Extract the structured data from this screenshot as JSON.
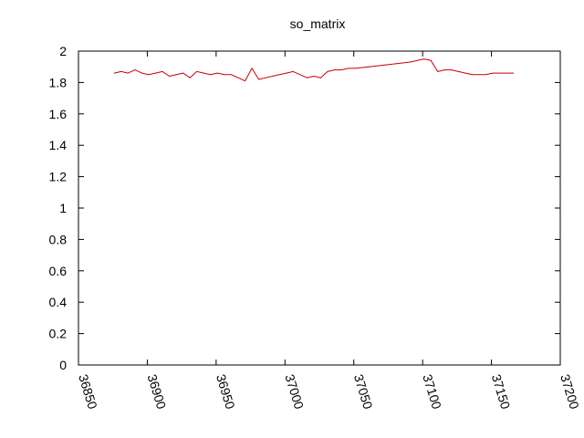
{
  "chart_data": {
    "type": "line",
    "title": "so_matrix",
    "xlabel": "",
    "ylabel": "",
    "xlim": [
      36850,
      37200
    ],
    "ylim": [
      0,
      2
    ],
    "x_ticks": [
      36850,
      36900,
      36950,
      37000,
      37050,
      37100,
      37150,
      37200
    ],
    "y_ticks": [
      0,
      0.2,
      0.4,
      0.6,
      0.8,
      1,
      1.2,
      1.4,
      1.6,
      1.8,
      2
    ],
    "y_tick_labels": [
      "0",
      "0.2",
      "0.4",
      "0.6",
      "0.8",
      "1",
      "1.2",
      "1.4",
      "1.6",
      "1.8",
      "2"
    ],
    "grid": false,
    "legend": "none",
    "series": [
      {
        "color": "#cc0000",
        "x": [
          36876,
          36881,
          36886,
          36891,
          36896,
          36901,
          36906,
          36911,
          36916,
          36921,
          36926,
          36931,
          36936,
          36941,
          36946,
          36951,
          36956,
          36961,
          36966,
          36971,
          36976,
          36981,
          36986,
          36991,
          36996,
          37001,
          37006,
          37011,
          37016,
          37021,
          37026,
          37031,
          37036,
          37041,
          37046,
          37051,
          37061,
          37071,
          37081,
          37091,
          37101,
          37106,
          37111,
          37116,
          37121,
          37126,
          37131,
          37136,
          37141,
          37146,
          37151,
          37156,
          37161,
          37166
        ],
        "y": [
          1.86,
          1.87,
          1.86,
          1.88,
          1.86,
          1.85,
          1.86,
          1.87,
          1.84,
          1.85,
          1.86,
          1.83,
          1.87,
          1.86,
          1.85,
          1.86,
          1.85,
          1.85,
          1.83,
          1.81,
          1.89,
          1.82,
          1.83,
          1.84,
          1.85,
          1.86,
          1.87,
          1.85,
          1.83,
          1.84,
          1.83,
          1.87,
          1.88,
          1.88,
          1.89,
          1.89,
          1.9,
          1.91,
          1.92,
          1.93,
          1.95,
          1.94,
          1.87,
          1.88,
          1.88,
          1.87,
          1.86,
          1.85,
          1.85,
          1.85,
          1.86,
          1.86,
          1.86,
          1.86
        ]
      }
    ]
  }
}
